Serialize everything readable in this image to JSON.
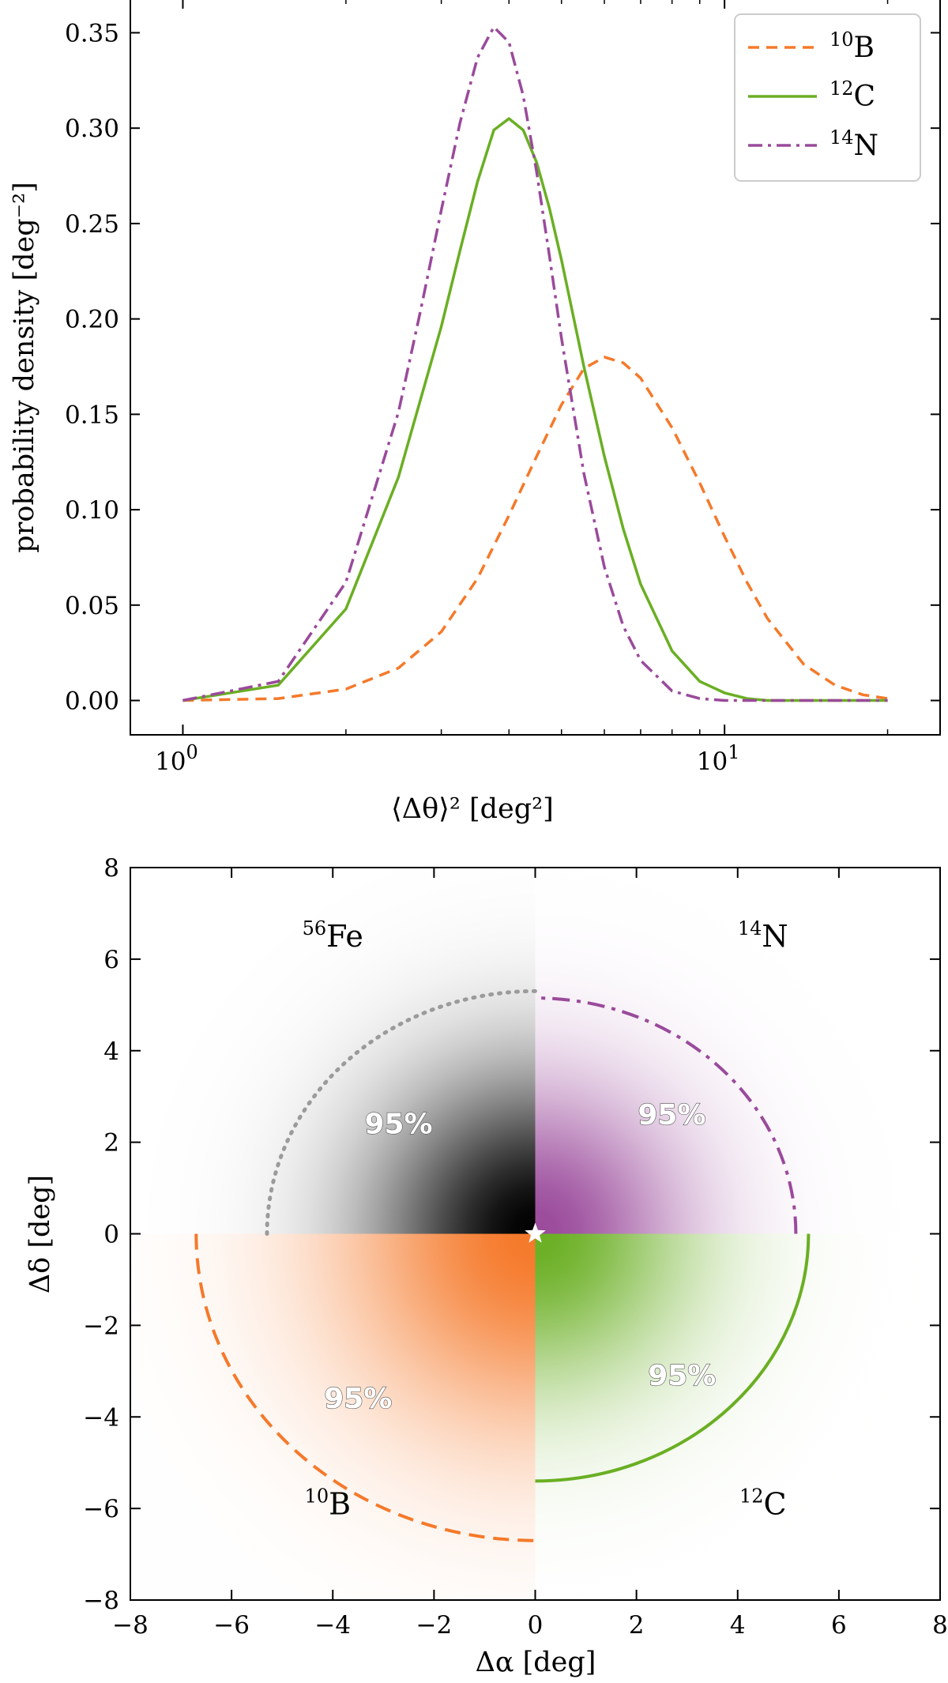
{
  "chart_data": [
    {
      "type": "line",
      "xscale": "log",
      "xlabel": "⟨Δθ⟩² [deg²]",
      "ylabel": "probability density [deg⁻²]",
      "xlim": [
        0.8,
        25
      ],
      "ylim": [
        -0.018,
        0.368
      ],
      "xticks": [
        {
          "value": 1,
          "base": "10",
          "exp": "0"
        },
        {
          "value": 10,
          "base": "10",
          "exp": "1"
        }
      ],
      "yticks": [
        {
          "value": 0.0,
          "label": "0.00"
        },
        {
          "value": 0.05,
          "label": "0.05"
        },
        {
          "value": 0.1,
          "label": "0.10"
        },
        {
          "value": 0.15,
          "label": "0.15"
        },
        {
          "value": 0.2,
          "label": "0.20"
        },
        {
          "value": 0.25,
          "label": "0.25"
        },
        {
          "value": 0.3,
          "label": "0.30"
        },
        {
          "value": 0.35,
          "label": "0.35"
        }
      ],
      "legend_position": "top-right",
      "series": [
        {
          "key": "boron",
          "mass": "10",
          "element": "B",
          "color": "#f5792a",
          "dash": "14,9",
          "x": [
            1.0,
            1.5,
            2.0,
            2.5,
            3.0,
            3.5,
            4.0,
            4.5,
            5.0,
            5.5,
            6.0,
            6.5,
            7.0,
            8.0,
            9.0,
            10.0,
            11.0,
            12.0,
            14.0,
            16.0,
            18.0,
            20.0
          ],
          "y": [
            0.0,
            0.001,
            0.006,
            0.017,
            0.036,
            0.064,
            0.097,
            0.128,
            0.155,
            0.174,
            0.18,
            0.177,
            0.169,
            0.143,
            0.114,
            0.086,
            0.062,
            0.043,
            0.019,
            0.008,
            0.003,
            0.001
          ]
        },
        {
          "key": "carbon",
          "mass": "12",
          "element": "C",
          "color": "#6aaf23",
          "dash": "",
          "x": [
            1.0,
            1.5,
            2.0,
            2.5,
            3.0,
            3.25,
            3.5,
            3.75,
            4.0,
            4.25,
            4.5,
            4.75,
            5.0,
            5.5,
            6.0,
            6.5,
            7.0,
            8.0,
            9.0,
            10.0,
            11.0,
            12.0,
            14.0,
            16.0,
            18.0,
            20.0
          ],
          "y": [
            0.0,
            0.008,
            0.048,
            0.117,
            0.196,
            0.236,
            0.272,
            0.299,
            0.305,
            0.299,
            0.282,
            0.258,
            0.231,
            0.175,
            0.128,
            0.09,
            0.061,
            0.026,
            0.01,
            0.004,
            0.001,
            0.0,
            0.0,
            0.0,
            0.0,
            0.0
          ]
        },
        {
          "key": "nitrogen",
          "mass": "14",
          "element": "N",
          "color": "#9a4a9b",
          "dash": "18,7,4,7",
          "x": [
            1.0,
            1.5,
            2.0,
            2.5,
            2.75,
            3.0,
            3.25,
            3.5,
            3.75,
            4.0,
            4.25,
            4.5,
            4.75,
            5.0,
            5.5,
            6.0,
            6.5,
            7.0,
            8.0,
            9.0,
            10.0,
            11.0,
            12.0,
            14.0,
            16.0,
            18.0,
            20.0
          ],
          "y": [
            0.0,
            0.01,
            0.062,
            0.151,
            0.205,
            0.257,
            0.303,
            0.337,
            0.353,
            0.345,
            0.317,
            0.277,
            0.233,
            0.19,
            0.119,
            0.07,
            0.039,
            0.021,
            0.005,
            0.001,
            0.0,
            0.0,
            0.0,
            0.0,
            0.0,
            0.0,
            0.0
          ]
        }
      ]
    },
    {
      "type": "heatmap",
      "xlabel": "Δα [deg]",
      "ylabel": "Δδ [deg]",
      "xlim": [
        -8,
        8
      ],
      "ylim": [
        -8,
        8
      ],
      "xticks": [
        {
          "value": -8,
          "label": "−8"
        },
        {
          "value": -6,
          "label": "−6"
        },
        {
          "value": -4,
          "label": "−4"
        },
        {
          "value": -2,
          "label": "−2"
        },
        {
          "value": 0,
          "label": "0"
        },
        {
          "value": 2,
          "label": "2"
        },
        {
          "value": 4,
          "label": "4"
        },
        {
          "value": 6,
          "label": "6"
        },
        {
          "value": 8,
          "label": "8"
        }
      ],
      "yticks": [
        {
          "value": -8,
          "label": "−8"
        },
        {
          "value": -6,
          "label": "−6"
        },
        {
          "value": -4,
          "label": "−4"
        },
        {
          "value": -2,
          "label": "−2"
        },
        {
          "value": 0,
          "label": "0"
        },
        {
          "value": 2,
          "label": "2"
        },
        {
          "value": 4,
          "label": "4"
        },
        {
          "value": 6,
          "label": "6"
        },
        {
          "value": 8,
          "label": "8"
        }
      ],
      "center_marker": {
        "x": 0,
        "y": 0,
        "symbol": "star"
      },
      "quadrants": [
        {
          "key": "iron",
          "mass": "56",
          "element": "Fe",
          "region": "top-left",
          "color": "#000000",
          "sigma": 2.2,
          "contour_radius": 5.3,
          "contour_style": "dotted",
          "contour_color": "#9b9b9b",
          "percent_label": "95%",
          "label_pos": [
            -4,
            6.5
          ],
          "pct_pos": [
            -2.7,
            2.4
          ]
        },
        {
          "key": "nitrogen",
          "mass": "14",
          "element": "N",
          "region": "top-right",
          "color": "#9a4a9b",
          "sigma": 2.05,
          "contour_radius": 5.15,
          "contour_style": "dashdot",
          "contour_color": "#9a4a9b",
          "percent_label": "95%",
          "label_pos": [
            4.5,
            6.5
          ],
          "pct_pos": [
            2.7,
            2.6
          ]
        },
        {
          "key": "boron",
          "mass": "10",
          "element": "B",
          "region": "bottom-left",
          "color": "#f5792a",
          "sigma": 2.7,
          "contour_radius": 6.7,
          "contour_style": "dashed",
          "contour_color": "#f5792a",
          "percent_label": "95%",
          "label_pos": [
            -4.1,
            -5.9
          ],
          "pct_pos": [
            -3.5,
            -3.6
          ]
        },
        {
          "key": "carbon",
          "mass": "12",
          "element": "C",
          "region": "bottom-right",
          "color": "#6aaf23",
          "sigma": 2.15,
          "contour_radius": 5.4,
          "contour_style": "solid",
          "contour_color": "#6aaf23",
          "percent_label": "95%",
          "label_pos": [
            4.5,
            -5.9
          ],
          "pct_pos": [
            2.9,
            -3.1
          ]
        }
      ]
    }
  ]
}
